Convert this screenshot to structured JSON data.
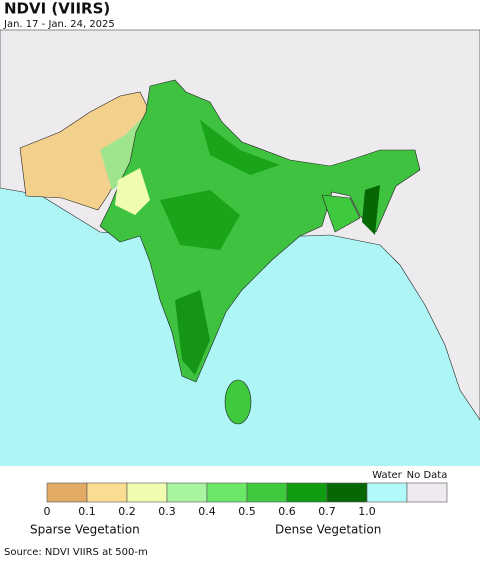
{
  "header": {
    "title": "NDVI (VIIRS)",
    "subtitle": "Jan. 17 - Jan. 24, 2025"
  },
  "legend": {
    "colors": [
      "#e3aa66",
      "#fbdc91",
      "#f0fcb0",
      "#a8f4a0",
      "#6ce868",
      "#3ec93e",
      "#109c10",
      "#056805",
      "#b2fafa",
      "#efeaf0"
    ],
    "ticks": [
      "0",
      "0.1",
      "0.2",
      "0.3",
      "0.4",
      "0.5",
      "0.6",
      "0.7",
      "1.0"
    ],
    "water": "Water",
    "no_data": "No Data",
    "sparse": "Sparse Vegetation",
    "dense": "Dense Vegetation"
  },
  "source": "Source: NDVI VIIRS at 500-m"
}
